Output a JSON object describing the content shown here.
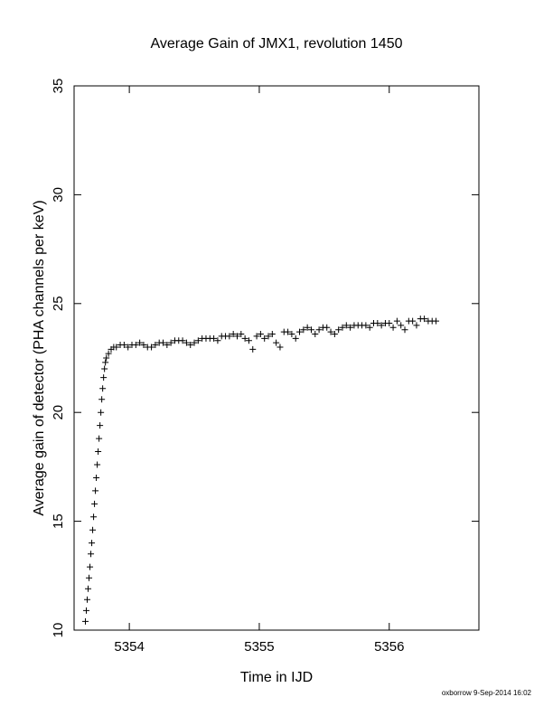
{
  "chart_data": {
    "type": "scatter",
    "title": "Average Gain of JMX1, revolution 1450",
    "x_label": "Time in IJD",
    "y_label": "Average gain of detector (PHA channels per keV)",
    "footer": "oxborrow  9-Sep-2014 16:02",
    "color": "#000000",
    "xlim": [
      5353.575,
      5356.69
    ],
    "ylim": [
      10,
      35
    ],
    "xticks": [
      5354,
      5355,
      5356
    ],
    "yticks": [
      10,
      15,
      20,
      25,
      30,
      35
    ],
    "x": [
      5353.662,
      5353.669,
      5353.676,
      5353.683,
      5353.69,
      5353.697,
      5353.704,
      5353.711,
      5353.718,
      5353.725,
      5353.732,
      5353.739,
      5353.746,
      5353.753,
      5353.76,
      5353.767,
      5353.774,
      5353.781,
      5353.788,
      5353.795,
      5353.802,
      5353.809,
      5353.816,
      5353.823,
      5353.84,
      5353.86,
      5353.88,
      5353.9,
      5353.93,
      5353.96,
      5353.99,
      5354.02,
      5354.05,
      5354.08,
      5354.11,
      5354.14,
      5354.17,
      5354.2,
      5354.23,
      5354.26,
      5354.29,
      5354.32,
      5354.35,
      5354.38,
      5354.41,
      5354.44,
      5354.47,
      5354.5,
      5354.53,
      5354.56,
      5354.59,
      5354.62,
      5354.65,
      5354.68,
      5354.71,
      5354.74,
      5354.77,
      5354.8,
      5354.83,
      5354.86,
      5354.89,
      5354.92,
      5354.95,
      5354.98,
      5355.01,
      5355.04,
      5355.07,
      5355.1,
      5355.13,
      5355.16,
      5355.19,
      5355.22,
      5355.25,
      5355.28,
      5355.31,
      5355.34,
      5355.37,
      5355.4,
      5355.43,
      5355.46,
      5355.49,
      5355.52,
      5355.55,
      5355.58,
      5355.61,
      5355.64,
      5355.67,
      5355.7,
      5355.73,
      5355.76,
      5355.79,
      5355.82,
      5355.85,
      5355.88,
      5355.91,
      5355.94,
      5355.97,
      5356.0,
      5356.03,
      5356.06,
      5356.09,
      5356.12,
      5356.15,
      5356.18,
      5356.21,
      5356.24,
      5356.27,
      5356.3,
      5356.33,
      5356.36
    ],
    "values": [
      10.4,
      10.9,
      11.4,
      11.9,
      12.4,
      12.9,
      13.5,
      14.0,
      14.6,
      15.2,
      15.8,
      16.4,
      17.0,
      17.6,
      18.2,
      18.8,
      19.4,
      20.0,
      20.6,
      21.1,
      21.6,
      22.0,
      22.3,
      22.5,
      22.7,
      22.9,
      23.0,
      23.0,
      23.1,
      23.1,
      23.0,
      23.1,
      23.1,
      23.2,
      23.1,
      23.0,
      23.0,
      23.1,
      23.2,
      23.2,
      23.1,
      23.2,
      23.3,
      23.3,
      23.3,
      23.2,
      23.1,
      23.2,
      23.3,
      23.4,
      23.4,
      23.4,
      23.4,
      23.3,
      23.5,
      23.5,
      23.5,
      23.6,
      23.5,
      23.6,
      23.4,
      23.3,
      22.9,
      23.5,
      23.6,
      23.4,
      23.5,
      23.6,
      23.2,
      23.0,
      23.7,
      23.7,
      23.6,
      23.4,
      23.7,
      23.8,
      23.9,
      23.8,
      23.6,
      23.8,
      23.9,
      23.9,
      23.7,
      23.6,
      23.8,
      23.9,
      24.0,
      23.9,
      24.0,
      24.0,
      24.0,
      24.0,
      23.9,
      24.1,
      24.1,
      24.0,
      24.1,
      24.1,
      23.9,
      24.2,
      24.0,
      23.8,
      24.2,
      24.2,
      24.0,
      24.3,
      24.3,
      24.2,
      24.2,
      24.2
    ]
  }
}
